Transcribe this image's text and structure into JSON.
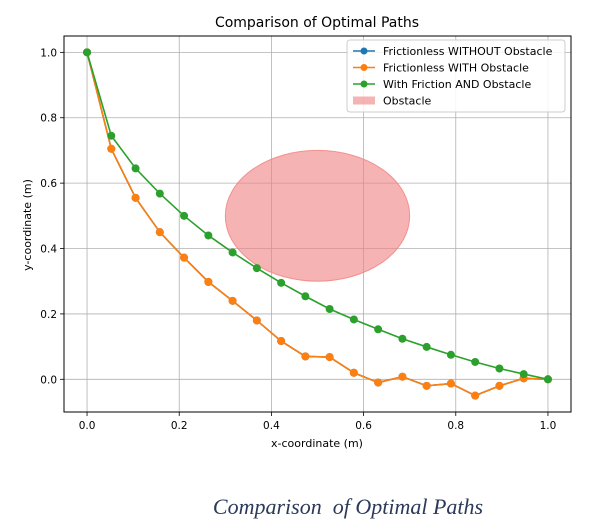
{
  "caption": "Comparison  of Optimal Paths",
  "chart_data": {
    "type": "line",
    "title": "Comparison of Optimal Paths",
    "xlabel": "x-coordinate (m)",
    "ylabel": "y-coordinate (m)",
    "xlim": [
      -0.05,
      1.05
    ],
    "ylim": [
      -0.1,
      1.05
    ],
    "xticks": [
      "0.0",
      "0.2",
      "0.4",
      "0.6",
      "0.8",
      "1.0"
    ],
    "yticks": [
      "0.0",
      "0.2",
      "0.4",
      "0.6",
      "0.8",
      "1.0"
    ],
    "grid": true,
    "legend_position": "top-right",
    "series": [
      {
        "name": "Frictionless WITHOUT Obstacle",
        "color": "#1f77b4",
        "x": [
          0.0,
          0.0526,
          0.1053,
          0.1579,
          0.2105,
          0.2632,
          0.3158,
          0.3684,
          0.4211,
          0.4737,
          0.5263,
          0.5789,
          0.6316,
          0.6842,
          0.7368,
          0.7895,
          0.8421,
          0.8947,
          0.9474,
          1.0
        ],
        "y": [
          1.0,
          0.705,
          0.555,
          0.45,
          0.372,
          0.298,
          0.24,
          0.18,
          0.117,
          0.07,
          0.068,
          0.02,
          -0.01,
          0.008,
          -0.02,
          -0.013,
          -0.05,
          -0.02,
          0.003,
          0.0
        ]
      },
      {
        "name": "Frictionless WITH Obstacle",
        "color": "#ff7f0e",
        "x": [
          0.0,
          0.0526,
          0.1053,
          0.1579,
          0.2105,
          0.2632,
          0.3158,
          0.3684,
          0.4211,
          0.4737,
          0.5263,
          0.5789,
          0.6316,
          0.6842,
          0.7368,
          0.7895,
          0.8421,
          0.8947,
          0.9474,
          1.0
        ],
        "y": [
          1.0,
          0.705,
          0.555,
          0.45,
          0.372,
          0.298,
          0.24,
          0.18,
          0.117,
          0.07,
          0.068,
          0.02,
          -0.01,
          0.008,
          -0.02,
          -0.013,
          -0.05,
          -0.02,
          0.003,
          0.0
        ]
      },
      {
        "name": "With Friction AND Obstacle",
        "color": "#2ca02c",
        "x": [
          0.0,
          0.0526,
          0.1053,
          0.1579,
          0.2105,
          0.2632,
          0.3158,
          0.3684,
          0.4211,
          0.4737,
          0.5263,
          0.5789,
          0.6316,
          0.6842,
          0.7368,
          0.7895,
          0.8421,
          0.8947,
          0.9474,
          1.0
        ],
        "y": [
          1.0,
          0.745,
          0.645,
          0.568,
          0.5,
          0.44,
          0.388,
          0.34,
          0.295,
          0.254,
          0.215,
          0.183,
          0.153,
          0.124,
          0.099,
          0.075,
          0.053,
          0.033,
          0.016,
          0.0
        ]
      }
    ],
    "obstacle": {
      "name": "Obstacle",
      "center": [
        0.5,
        0.5
      ],
      "radius": 0.2,
      "color": "#f08080"
    }
  }
}
